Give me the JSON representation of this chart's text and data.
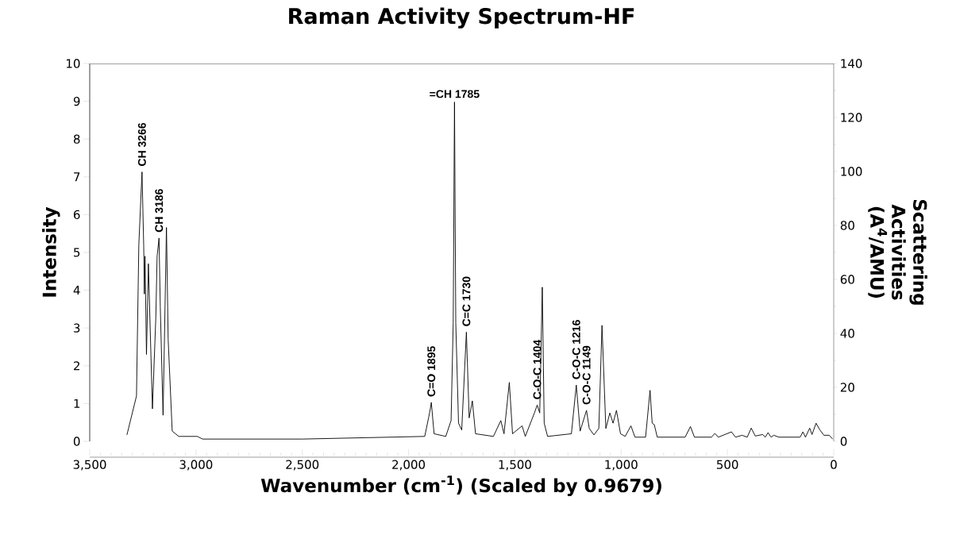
{
  "chart_data": {
    "type": "line",
    "title": "Raman Activity Spectrum-HF",
    "xlabel": "Wavenumber (cm$^{-1}$) (Scaled by 0.9679)",
    "ylabel": "Intensity",
    "y2label": "Scattering Activities (A$^{4}$/AMU)",
    "xlim": [
      3500,
      0
    ],
    "xticks": [
      {
        "value": 3500,
        "label": "3,500"
      },
      {
        "value": 3000,
        "label": "3,000"
      },
      {
        "value": 2500,
        "label": "2,500"
      },
      {
        "value": 2000,
        "label": "2,000"
      },
      {
        "value": 1500,
        "label": "1,500"
      },
      {
        "value": 1000,
        "label": "1,000"
      },
      500,
      0
    ],
    "ylim": [
      0,
      10
    ],
    "yticks": [
      0,
      1,
      2,
      3,
      4,
      5,
      6,
      7,
      8,
      9,
      10
    ],
    "y2lim": [
      0,
      140
    ],
    "y2ticks": [
      0,
      20,
      40,
      60,
      80,
      100,
      120,
      140
    ],
    "grid": false,
    "marker": "none",
    "line_style": "solid",
    "series": [
      {
        "color": "#000000",
        "x": [
          3325,
          3280,
          3269,
          3254,
          3246,
          3243,
          3240,
          3233,
          3224,
          3205,
          3189,
          3183,
          3174,
          3168,
          3155,
          3139,
          3131,
          3112,
          3081,
          2994,
          2969,
          2500,
          1924,
          1906,
          1899,
          1893,
          1880,
          1825,
          1800,
          1790,
          1784,
          1778,
          1765,
          1750,
          1728,
          1715,
          1700,
          1685,
          1601,
          1566,
          1551,
          1526,
          1511,
          1466,
          1451,
          1408,
          1395,
          1383,
          1371,
          1362,
          1346,
          1234,
          1211,
          1193,
          1163,
          1150,
          1128,
          1105,
          1090,
          1072,
          1053,
          1038,
          1022,
          1003,
          981,
          954,
          935,
          885,
          864,
          854,
          844,
          830,
          699,
          674,
          655,
          575,
          559,
          543,
          481,
          462,
          431,
          407,
          388,
          369,
          334,
          322,
          309,
          295,
          282,
          258,
          158,
          145,
          133,
          113,
          102,
          83,
          65,
          46,
          21,
          5
        ],
        "values": [
          0.17,
          1.2,
          5.2,
          7.13,
          5.17,
          3.9,
          4.9,
          2.3,
          4.7,
          0.86,
          3.28,
          4.9,
          5.38,
          3.56,
          0.69,
          5.66,
          2.7,
          0.27,
          0.13,
          0.13,
          0.06,
          0.06,
          0.13,
          0.62,
          0.82,
          1.03,
          0.2,
          0.13,
          0.55,
          3.14,
          8.98,
          3.14,
          0.48,
          0.3,
          2.89,
          0.62,
          1.07,
          0.2,
          0.13,
          0.55,
          0.2,
          1.56,
          0.2,
          0.41,
          0.13,
          0.75,
          0.96,
          0.75,
          4.08,
          0.48,
          0.13,
          0.2,
          1.49,
          0.27,
          0.82,
          0.34,
          0.17,
          0.34,
          3.07,
          0.34,
          0.75,
          0.48,
          0.82,
          0.2,
          0.13,
          0.41,
          0.11,
          0.11,
          1.35,
          0.48,
          0.44,
          0.11,
          0.11,
          0.39,
          0.11,
          0.11,
          0.21,
          0.11,
          0.25,
          0.11,
          0.16,
          0.11,
          0.35,
          0.14,
          0.18,
          0.11,
          0.23,
          0.11,
          0.16,
          0.11,
          0.11,
          0.25,
          0.11,
          0.35,
          0.18,
          0.48,
          0.3,
          0.16,
          0.16,
          0.06
        ]
      }
    ],
    "annotations": [
      {
        "text": "CH 3266",
        "x": 3254,
        "y": 7.13
      },
      {
        "text": "CH 3186",
        "x": 3174,
        "y": 5.38
      },
      {
        "text": "=CH 1785",
        "x": 1784,
        "y": 8.98
      },
      {
        "text": "C=O 1895",
        "x": 1893,
        "y": 1.03
      },
      {
        "text": "C=C 1730",
        "x": 1728,
        "y": 2.89
      },
      {
        "text": "C-O-C 1404",
        "x": 1395,
        "y": 0.96
      },
      {
        "text": "C-O-C 1216",
        "x": 1211,
        "y": 1.49
      },
      {
        "text": "C-O-C 1149",
        "x": 1163,
        "y": 0.82
      }
    ]
  }
}
